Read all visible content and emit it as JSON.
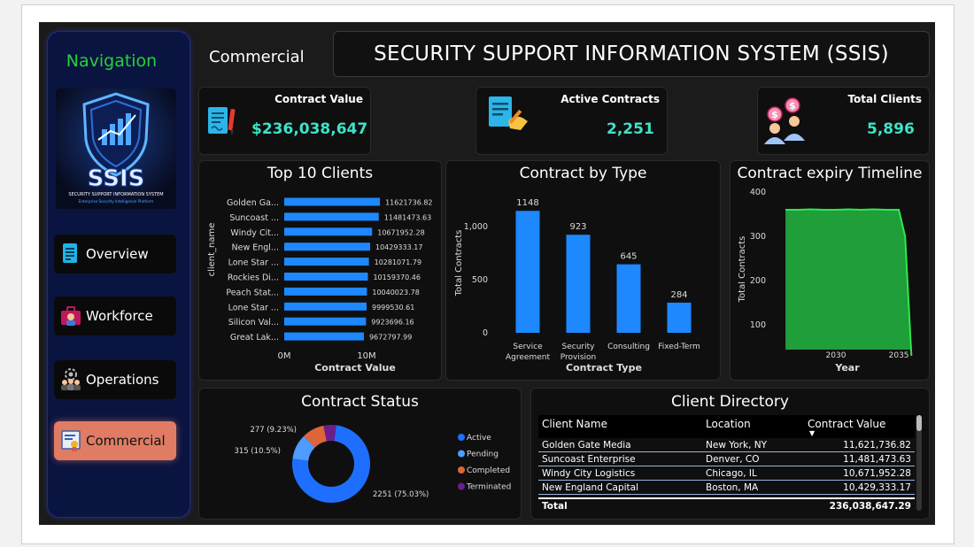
{
  "header": {
    "page_label": "Commercial",
    "title": "SECURITY SUPPORT INFORMATION SYSTEM (SSIS)"
  },
  "nav": {
    "title": "Navigation",
    "logo_text": "SSIS",
    "logo_subtitle": "SECURITY SUPPORT INFORMATION SYSTEM",
    "logo_tagline": "Enterprise Security Intelligence Platform",
    "items": [
      {
        "label": "Overview",
        "icon": "document-icon",
        "active": false
      },
      {
        "label": "Workforce",
        "icon": "briefcase-person-icon",
        "active": false
      },
      {
        "label": "Operations",
        "icon": "team-gear-icon",
        "active": false
      },
      {
        "label": "Commercial",
        "icon": "certificate-icon",
        "active": true
      }
    ]
  },
  "kpis": {
    "contract_value": {
      "label": "Contract Value",
      "value": "$236,038,647",
      "icon": "contract-pen-icon"
    },
    "active_contracts": {
      "label": "Active Contracts",
      "value": "2,251",
      "icon": "signed-document-icon"
    },
    "total_clients": {
      "label": "Total Clients",
      "value": "5,896",
      "icon": "clients-dollar-icon"
    }
  },
  "top_clients": {
    "title": "Top 10 Clients",
    "ylabel": "client_name",
    "xlabel": "Contract Value",
    "xticks": [
      "0M",
      "10M"
    ],
    "color": "#1e88ff",
    "chart_data": {
      "type": "bar",
      "orientation": "horizontal",
      "categories": [
        "Golden Ga...",
        "Suncoast ...",
        "Windy Cit...",
        "New Engl...",
        "Lone Star ...",
        "Rockies Di...",
        "Peach Stat...",
        "Lone Star ...",
        "Silicon Val...",
        "Great Lak..."
      ],
      "values": [
        11621736.82,
        11481473.63,
        10671952.28,
        10429333.17,
        10281071.79,
        10159370.46,
        10040023.78,
        9999530.61,
        9923696.16,
        9672797.99
      ],
      "labels": [
        "11621736.82",
        "11481473.63",
        "10671952.28",
        "10429333.17",
        "10281071.79",
        "10159370.46",
        "10040023.78",
        "9999530.61",
        "9923696.16",
        "9672797.99"
      ],
      "xlim": [
        0,
        12000000
      ]
    }
  },
  "contract_type": {
    "title": "Contract by Type",
    "ylabel": "Total Contracts",
    "xlabel": "Contract Type",
    "yticks": [
      "0",
      "500",
      "1,000"
    ],
    "color": "#1e88ff",
    "chart_data": {
      "type": "bar",
      "categories": [
        [
          "Service",
          "Agreement"
        ],
        [
          "Security",
          "Provision"
        ],
        [
          "Consulting"
        ],
        [
          "Fixed-Term"
        ]
      ],
      "values": [
        1148,
        923,
        645,
        284
      ],
      "labels": [
        "1148",
        "923",
        "645",
        "284"
      ],
      "ylim": [
        0,
        1300
      ]
    }
  },
  "expiry": {
    "title": "Contract expiry Timeline",
    "ylabel": "Total Contracts",
    "xlabel": "Year",
    "yticks": [
      "100",
      "200",
      "300",
      "400"
    ],
    "xticks": [
      "2030",
      "2035"
    ],
    "color": "#1f9e3a",
    "line_color": "#2ee84e",
    "chart_data": {
      "type": "area",
      "x": [
        2026,
        2027,
        2028,
        2029,
        2030,
        2031,
        2032,
        2033,
        2034,
        2035,
        2035.5,
        2036
      ],
      "y": [
        360,
        360,
        361,
        360,
        360,
        361,
        360,
        361,
        360,
        360,
        300,
        30
      ],
      "xlim": [
        2025.5,
        2036.4
      ],
      "ylim": [
        40,
        420
      ]
    }
  },
  "status": {
    "title": "Contract Status",
    "chart_data": {
      "type": "pie",
      "donut": true,
      "labels": [
        "Active",
        "Pending",
        "Completed",
        "Terminated"
      ],
      "values": [
        2251,
        315,
        277,
        157
      ],
      "colors": [
        "#1e6fff",
        "#4f9bff",
        "#e0643a",
        "#6b1f8a"
      ],
      "slice_labels": [
        "2251 (75.03%)",
        "315 (10.5%)",
        "277 (9.23%)",
        ""
      ]
    }
  },
  "directory": {
    "title": "Client Directory",
    "columns": [
      "Client Name",
      "Location",
      "Contract Value"
    ],
    "rows": [
      [
        "Golden Gate Media",
        "New York, NY",
        "11,621,736.82"
      ],
      [
        "Suncoast Enterprise",
        "Denver, CO",
        "11,481,473.63"
      ],
      [
        "Windy City Logistics",
        "Chicago, IL",
        "10,671,952.28"
      ],
      [
        "New England Capital",
        "Boston, MA",
        "10,429,333.17"
      ]
    ],
    "total_label": "Total",
    "total_value": "236,038,647.29"
  }
}
